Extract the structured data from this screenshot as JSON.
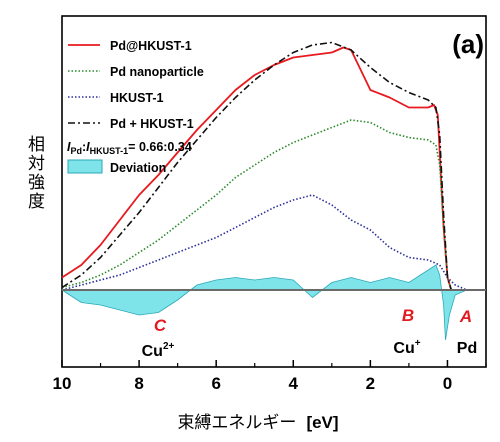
{
  "chart_data": {
    "type": "line",
    "title": "",
    "panel_label": "(a)",
    "xlabel": "束縛エネルギー",
    "xlabel_unit": "[eV]",
    "ylabel": "相対強度",
    "xlim": [
      10,
      -1
    ],
    "x_reversed": true,
    "x_ticks": [
      10,
      8,
      6,
      4,
      2,
      0
    ],
    "ratio_note": {
      "sub1": "Pd",
      "sub2": "HKUST-1",
      "value": "= 0.66:0.34"
    },
    "colors": {
      "red": "#e8191f",
      "green": "#2a8a2a",
      "blue": "#2b2f9a",
      "black": "#111111",
      "cyan": "#7fe3ea",
      "cyan_edge": "#2aaab8",
      "zero_line": "#6a6a6a"
    },
    "series": [
      {
        "name": "Pd@HKUST-1",
        "style": "solid",
        "color": "#e8191f",
        "x": [
          10,
          9.5,
          9,
          8.5,
          8,
          7.5,
          7,
          6.5,
          6,
          5.5,
          5,
          4.5,
          4,
          3.5,
          3,
          2.7,
          2.5,
          2,
          1.5,
          1,
          0.7,
          0.5,
          0.35,
          0.25,
          0.2,
          0.1,
          0,
          -0.1,
          -0.5,
          -1
        ],
        "y": [
          0.05,
          0.1,
          0.18,
          0.28,
          0.38,
          0.46,
          0.55,
          0.64,
          0.72,
          0.8,
          0.86,
          0.9,
          0.93,
          0.94,
          0.95,
          0.97,
          0.96,
          0.8,
          0.77,
          0.73,
          0.73,
          0.73,
          0.74,
          0.7,
          0.55,
          0.25,
          0.05,
          0.0,
          0.0,
          0.0
        ]
      },
      {
        "name": "Pd nanoparticle",
        "style": "dotted",
        "color": "#2a8a2a",
        "x": [
          10,
          9.5,
          9,
          8.5,
          8,
          7.5,
          7,
          6.5,
          6,
          5.5,
          5,
          4.5,
          4,
          3.5,
          3,
          2.5,
          2,
          1.5,
          1,
          0.5,
          0.3,
          0.2,
          0.1,
          0,
          -0.1,
          -0.5,
          -1
        ],
        "y": [
          0.01,
          0.03,
          0.06,
          0.1,
          0.15,
          0.2,
          0.26,
          0.32,
          0.38,
          0.45,
          0.5,
          0.55,
          0.59,
          0.62,
          0.65,
          0.68,
          0.67,
          0.63,
          0.61,
          0.6,
          0.58,
          0.5,
          0.25,
          0.05,
          0.0,
          0.0,
          0.0
        ]
      },
      {
        "name": "HKUST-1",
        "style": "dotted",
        "color": "#2b2f9a",
        "x": [
          10,
          9.5,
          9,
          8.5,
          8,
          7.5,
          7,
          6.5,
          6,
          5.5,
          5,
          4.5,
          4,
          3.5,
          3,
          2.5,
          2,
          1.5,
          1,
          0.5,
          0.2,
          0,
          -0.2,
          -0.5,
          -1
        ],
        "y": [
          0.0,
          0.02,
          0.04,
          0.06,
          0.09,
          0.12,
          0.15,
          0.18,
          0.21,
          0.25,
          0.29,
          0.33,
          0.36,
          0.38,
          0.34,
          0.28,
          0.24,
          0.17,
          0.13,
          0.12,
          0.1,
          0.05,
          0.02,
          0.0,
          0.0
        ]
      },
      {
        "name": "Pd + HKUST-1",
        "style": "dashdot",
        "color": "#111111",
        "x": [
          10,
          9.5,
          9,
          8.5,
          8,
          7.5,
          7,
          6.5,
          6,
          5.5,
          5,
          4.5,
          4,
          3.5,
          3,
          2.5,
          2,
          1.5,
          1,
          0.5,
          0.3,
          0.2,
          0.1,
          0,
          -0.1,
          -0.5,
          -1
        ],
        "y": [
          0.01,
          0.06,
          0.13,
          0.22,
          0.31,
          0.41,
          0.51,
          0.6,
          0.69,
          0.77,
          0.84,
          0.9,
          0.95,
          0.98,
          0.99,
          0.96,
          0.89,
          0.83,
          0.79,
          0.76,
          0.73,
          0.62,
          0.3,
          0.05,
          0.0,
          0.0,
          0.0
        ]
      },
      {
        "name": "Deviation",
        "style": "fill",
        "color": "#7fe3ea",
        "x": [
          10,
          9.8,
          9.5,
          9,
          8.5,
          8,
          7.5,
          7.2,
          7,
          6.5,
          6,
          5.5,
          5,
          4.5,
          4,
          3.5,
          3,
          2.5,
          2,
          1.5,
          1,
          0.5,
          0.3,
          0.2,
          0.1,
          0.05,
          -0.05,
          -0.2,
          -0.5,
          -1
        ],
        "y": [
          0.0,
          -0.02,
          -0.05,
          -0.06,
          -0.08,
          -0.1,
          -0.09,
          -0.06,
          -0.04,
          0.02,
          0.04,
          0.05,
          0.04,
          0.05,
          0.04,
          -0.03,
          0.03,
          0.05,
          0.03,
          0.05,
          0.03,
          0.08,
          0.1,
          0.06,
          -0.06,
          -0.2,
          -0.1,
          -0.02,
          0.0,
          0.0
        ]
      }
    ],
    "annotations": [
      {
        "letter": "C",
        "label": "Cu",
        "sup": "2+",
        "x": 7.6
      },
      {
        "letter": "B",
        "label": "Cu",
        "sup": "+",
        "x": 1.2
      },
      {
        "letter": "A",
        "label": "Pd",
        "x": -0.5
      }
    ]
  }
}
